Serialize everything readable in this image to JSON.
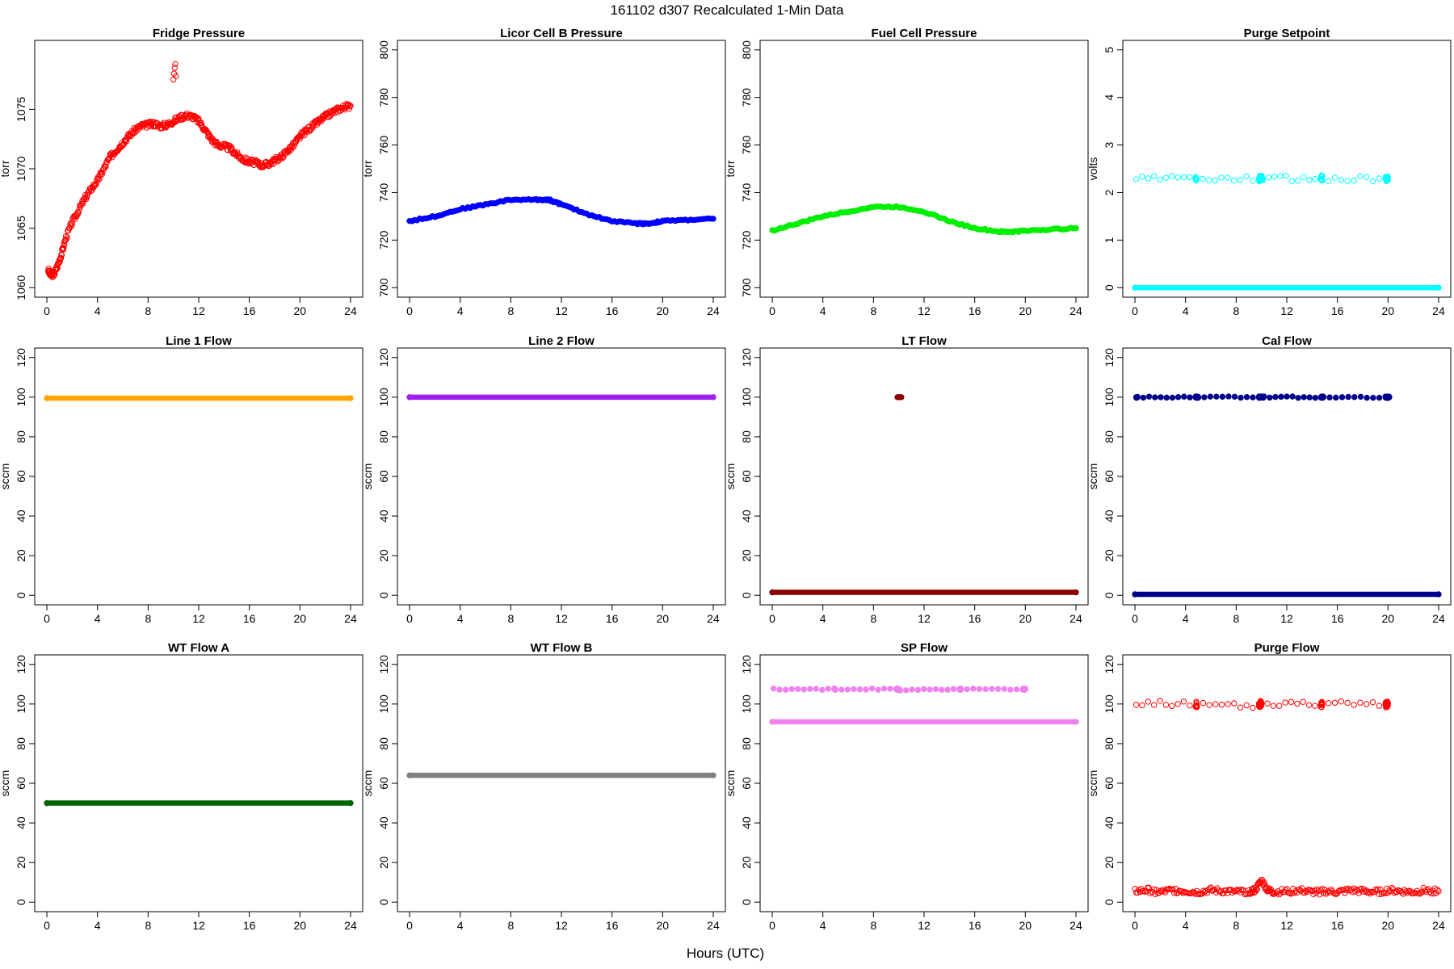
{
  "figure": {
    "title": "161102   d307   Recalculated 1-Min Data",
    "xlabel": "Hours (UTC)"
  },
  "chart_data": [
    {
      "type": "scatter",
      "title": "Fridge Pressure",
      "ylabel": "torr",
      "xlim": [
        0,
        24
      ],
      "ylim": [
        1060,
        1080
      ],
      "xticks": [
        0,
        4,
        8,
        12,
        16,
        20,
        24
      ],
      "yticks": [
        1060,
        1065,
        1070,
        1075
      ],
      "color": "#ff0000",
      "marker": "open",
      "series": [
        {
          "name": "Fridge Pressure",
          "x": [
            0.1,
            0.3,
            0.6,
            0.9,
            1.2,
            1.5,
            2,
            2.5,
            3,
            3.5,
            4,
            4.5,
            5,
            5.5,
            6,
            6.5,
            7,
            7.5,
            8,
            8.5,
            9,
            9.5,
            10,
            10.5,
            11,
            11.5,
            12,
            12.5,
            13,
            13.5,
            14,
            14.5,
            15,
            15.5,
            16,
            16.5,
            17,
            17.5,
            18,
            18.5,
            19,
            19.5,
            20,
            20.5,
            21,
            21.5,
            22,
            22.5,
            23,
            23.5,
            24
          ],
          "y": [
            1061.5,
            1061,
            1061.2,
            1062,
            1063,
            1064.2,
            1065.5,
            1066.5,
            1067.5,
            1068.3,
            1069,
            1070,
            1071,
            1071.6,
            1072.2,
            1072.8,
            1073.3,
            1073.6,
            1073.7,
            1073.8,
            1073.6,
            1073.7,
            1074,
            1074.3,
            1074.5,
            1074.4,
            1074,
            1073.3,
            1072.5,
            1072,
            1071.9,
            1071.7,
            1071.2,
            1070.8,
            1070.6,
            1070.5,
            1070.3,
            1070.4,
            1070.7,
            1071,
            1071.5,
            1072,
            1072.7,
            1073.2,
            1073.6,
            1074,
            1074.4,
            1074.7,
            1075,
            1075.2,
            1075.3
          ]
        },
        {
          "name": "Fridge Pressure spike",
          "x": [
            10,
            10.05,
            10.1,
            10.15,
            10.2
          ],
          "y": [
            1077.5,
            1078,
            1078.5,
            1078.8,
            1077.8
          ]
        }
      ]
    },
    {
      "type": "scatter",
      "title": "Licor Cell B Pressure",
      "ylabel": "torr",
      "xlim": [
        0,
        24
      ],
      "ylim": [
        700,
        800
      ],
      "xticks": [
        0,
        4,
        8,
        12,
        16,
        20,
        24
      ],
      "yticks": [
        700,
        720,
        740,
        760,
        780,
        800
      ],
      "color": "#0000ff",
      "marker": "filled",
      "series": [
        {
          "name": "Licor Cell B Pressure",
          "x": [
            0,
            2,
            4,
            6,
            8,
            10,
            11,
            12,
            14,
            16,
            18,
            19,
            20,
            22,
            24
          ],
          "y": [
            728,
            730,
            733,
            735,
            737,
            737,
            737,
            735,
            731,
            728,
            727,
            727,
            728,
            728.5,
            729
          ]
        }
      ]
    },
    {
      "type": "scatter",
      "title": "Fuel Cell Pressure",
      "ylabel": "torr",
      "xlim": [
        0,
        24
      ],
      "ylim": [
        700,
        800
      ],
      "xticks": [
        0,
        4,
        8,
        12,
        16,
        20,
        24
      ],
      "yticks": [
        700,
        720,
        740,
        760,
        780,
        800
      ],
      "color": "#00ee00",
      "marker": "filled",
      "series": [
        {
          "name": "Fuel Cell Pressure",
          "x": [
            0,
            2,
            4,
            6,
            8,
            10,
            12,
            14,
            16,
            18,
            19,
            20,
            22,
            24
          ],
          "y": [
            724,
            727,
            730,
            732,
            734,
            734,
            732,
            728,
            725,
            723.5,
            723.5,
            724,
            724.5,
            725
          ]
        }
      ]
    },
    {
      "type": "scatter",
      "title": "Purge Setpoint",
      "ylabel": "volts",
      "xlim": [
        0,
        24
      ],
      "ylim": [
        0,
        5
      ],
      "xticks": [
        0,
        4,
        8,
        12,
        16,
        20,
        24
      ],
      "yticks": [
        0,
        1,
        2,
        3,
        4,
        5
      ],
      "color": "#00ffff",
      "marker": "open",
      "series": [
        {
          "name": "Purge Setpoint base",
          "x": [
            0,
            24
          ],
          "y": [
            0,
            0
          ],
          "line": true
        },
        {
          "name": "Purge Setpoint events",
          "x": [
            0.1,
            4.8,
            4.85,
            9.8,
            9.9,
            10.1,
            14.7,
            14.8,
            19.8,
            19.9,
            20
          ],
          "y": [
            2.3,
            2.3,
            2.28,
            2.28,
            2.3,
            2.3,
            2.3,
            2.3,
            2.28,
            2.3,
            2.3
          ]
        }
      ]
    },
    {
      "type": "scatter",
      "title": "Line 1 Flow",
      "ylabel": "sccm",
      "xlim": [
        0,
        24
      ],
      "ylim": [
        0,
        120
      ],
      "xticks": [
        0,
        4,
        8,
        12,
        16,
        20,
        24
      ],
      "yticks": [
        0,
        20,
        40,
        60,
        80,
        100,
        120
      ],
      "color": "#ffa500",
      "marker": "filled",
      "series": [
        {
          "name": "Line 1 Flow",
          "x": [
            0,
            24
          ],
          "y": [
            99.5,
            99.5
          ],
          "line": true
        }
      ]
    },
    {
      "type": "scatter",
      "title": "Line 2 Flow",
      "ylabel": "sccm",
      "xlim": [
        0,
        24
      ],
      "ylim": [
        0,
        120
      ],
      "xticks": [
        0,
        4,
        8,
        12,
        16,
        20,
        24
      ],
      "yticks": [
        0,
        20,
        40,
        60,
        80,
        100,
        120
      ],
      "color": "#a020f0",
      "marker": "filled",
      "series": [
        {
          "name": "Line 2 Flow",
          "x": [
            0,
            24
          ],
          "y": [
            100,
            100
          ],
          "line": true
        }
      ]
    },
    {
      "type": "scatter",
      "title": "LT Flow",
      "ylabel": "sccm",
      "xlim": [
        0,
        24
      ],
      "ylim": [
        0,
        120
      ],
      "xticks": [
        0,
        4,
        8,
        12,
        16,
        20,
        24
      ],
      "yticks": [
        0,
        20,
        40,
        60,
        80,
        100,
        120
      ],
      "color": "#8b0000",
      "marker": "filled",
      "series": [
        {
          "name": "LT Flow base",
          "x": [
            0,
            24
          ],
          "y": [
            1.5,
            1.5
          ],
          "line": true
        },
        {
          "name": "LT Flow events",
          "x": [
            9.9,
            10,
            10.1,
            10.2
          ],
          "y": [
            100,
            100,
            100,
            100
          ]
        }
      ]
    },
    {
      "type": "scatter",
      "title": "Cal Flow",
      "ylabel": "sccm",
      "xlim": [
        0,
        24
      ],
      "ylim": [
        0,
        120
      ],
      "xticks": [
        0,
        4,
        8,
        12,
        16,
        20,
        24
      ],
      "yticks": [
        0,
        20,
        40,
        60,
        80,
        100,
        120
      ],
      "color": "#00008b",
      "marker": "filled",
      "series": [
        {
          "name": "Cal Flow base",
          "x": [
            0,
            24
          ],
          "y": [
            0.5,
            0.5
          ],
          "line": true
        },
        {
          "name": "Cal Flow events",
          "x": [
            0.1,
            0.2,
            4.8,
            4.9,
            5,
            9.8,
            9.9,
            10,
            10.2,
            14.7,
            14.8,
            14.9,
            19.8,
            19.9,
            20,
            20.1
          ],
          "y": [
            100,
            100,
            100,
            100,
            100,
            100,
            100,
            100,
            100,
            100,
            100,
            100,
            100,
            100,
            100,
            100
          ]
        }
      ]
    },
    {
      "type": "scatter",
      "title": "WT Flow A",
      "ylabel": "sccm",
      "xlim": [
        0,
        24
      ],
      "ylim": [
        0,
        120
      ],
      "xticks": [
        0,
        4,
        8,
        12,
        16,
        20,
        24
      ],
      "yticks": [
        0,
        20,
        40,
        60,
        80,
        100,
        120
      ],
      "color": "#006400",
      "marker": "filled",
      "series": [
        {
          "name": "WT Flow A",
          "x": [
            0,
            24
          ],
          "y": [
            50,
            50
          ],
          "line": true
        }
      ]
    },
    {
      "type": "scatter",
      "title": "WT Flow B",
      "ylabel": "sccm",
      "xlim": [
        0,
        24
      ],
      "ylim": [
        0,
        120
      ],
      "xticks": [
        0,
        4,
        8,
        12,
        16,
        20,
        24
      ],
      "yticks": [
        0,
        20,
        40,
        60,
        80,
        100,
        120
      ],
      "color": "#808080",
      "marker": "filled",
      "series": [
        {
          "name": "WT Flow B",
          "x": [
            0,
            24
          ],
          "y": [
            64,
            64
          ],
          "line": true
        }
      ]
    },
    {
      "type": "scatter",
      "title": "SP Flow",
      "ylabel": "sccm",
      "xlim": [
        0,
        24
      ],
      "ylim": [
        0,
        120
      ],
      "xticks": [
        0,
        4,
        8,
        12,
        16,
        20,
        24
      ],
      "yticks": [
        0,
        20,
        40,
        60,
        80,
        100,
        120
      ],
      "color": "#ee82ee",
      "marker": "filled",
      "series": [
        {
          "name": "SP Flow base",
          "x": [
            0,
            24
          ],
          "y": [
            91,
            91
          ],
          "line": true
        },
        {
          "name": "SP Flow events",
          "x": [
            0.1,
            4.9,
            5,
            9.8,
            9.9,
            10.1,
            14.8,
            14.9,
            19.8,
            19.9,
            20
          ],
          "y": [
            107.5,
            107.5,
            107.5,
            107.5,
            107.5,
            107,
            107.5,
            107.5,
            107.5,
            107.5,
            107.5
          ]
        }
      ]
    },
    {
      "type": "scatter",
      "title": "Purge Flow",
      "ylabel": "sccm",
      "xlim": [
        0,
        24
      ],
      "ylim": [
        0,
        120
      ],
      "xticks": [
        0,
        4,
        8,
        12,
        16,
        20,
        24
      ],
      "yticks": [
        0,
        20,
        40,
        60,
        80,
        100,
        120
      ],
      "color": "#ff0000",
      "marker": "open",
      "series": [
        {
          "name": "Purge Flow",
          "x": [
            0,
            1,
            2,
            3,
            4,
            5,
            6,
            7,
            8,
            9,
            9.5,
            10,
            10.5,
            11,
            12,
            13,
            14,
            15,
            16,
            17,
            18,
            19,
            20,
            21,
            22,
            23,
            24
          ],
          "y": [
            5.5,
            6,
            5,
            6,
            5.5,
            5,
            6,
            5.5,
            5,
            5.5,
            6,
            11,
            6,
            5,
            5.5,
            6,
            5,
            5.5,
            5,
            6,
            5.5,
            5,
            6,
            5.5,
            5,
            6,
            5.5
          ]
        },
        {
          "name": "Purge Flow events",
          "x": [
            0.1,
            4.8,
            4.9,
            9.8,
            9.9,
            10,
            14.7,
            14.8,
            19.8,
            19.9,
            20
          ],
          "y": [
            100.5,
            100,
            99.5,
            99,
            100,
            100.5,
            99.5,
            100,
            100,
            99.5,
            100.5
          ]
        }
      ]
    }
  ]
}
